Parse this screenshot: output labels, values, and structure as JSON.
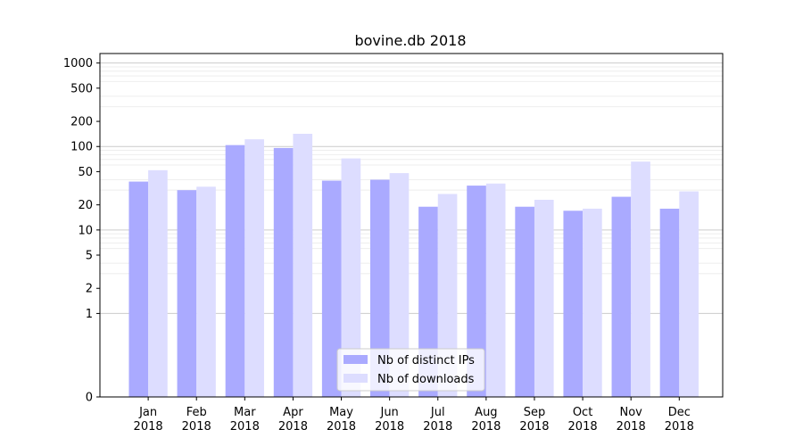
{
  "chart_data": {
    "type": "bar",
    "title": "bovine.db 2018",
    "xlabel": "",
    "ylabel": "",
    "y_scale": "symlog",
    "ylim": [
      0,
      1300
    ],
    "y_ticks": [
      0,
      1,
      2,
      5,
      10,
      20,
      50,
      100,
      200,
      500,
      1000
    ],
    "y_tick_labels": [
      "0",
      "1",
      "2",
      "5",
      "10",
      "20",
      "50",
      "100",
      "200",
      "500",
      "1000"
    ],
    "categories": [
      "Jan\n2018",
      "Feb\n2018",
      "Mar\n2018",
      "Apr\n2018",
      "May\n2018",
      "Jun\n2018",
      "Jul\n2018",
      "Aug\n2018",
      "Sep\n2018",
      "Oct\n2018",
      "Nov\n2018",
      "Dec\n2018"
    ],
    "category_lines": [
      [
        "Jan",
        "2018"
      ],
      [
        "Feb",
        "2018"
      ],
      [
        "Mar",
        "2018"
      ],
      [
        "Apr",
        "2018"
      ],
      [
        "May",
        "2018"
      ],
      [
        "Jun",
        "2018"
      ],
      [
        "Jul",
        "2018"
      ],
      [
        "Aug",
        "2018"
      ],
      [
        "Sep",
        "2018"
      ],
      [
        "Oct",
        "2018"
      ],
      [
        "Nov",
        "2018"
      ],
      [
        "Dec",
        "2018"
      ]
    ],
    "series": [
      {
        "name": "Nb of distinct IPs",
        "color": "#aaaaff",
        "values": [
          38,
          30,
          104,
          96,
          39,
          40,
          19,
          34,
          19,
          17,
          25,
          18
        ]
      },
      {
        "name": "Nb of downloads",
        "color": "#ddddff",
        "values": [
          52,
          33,
          122,
          142,
          72,
          48,
          27,
          36,
          23,
          18,
          66,
          29
        ]
      }
    ],
    "grid": true,
    "legend_position": "lower center"
  }
}
